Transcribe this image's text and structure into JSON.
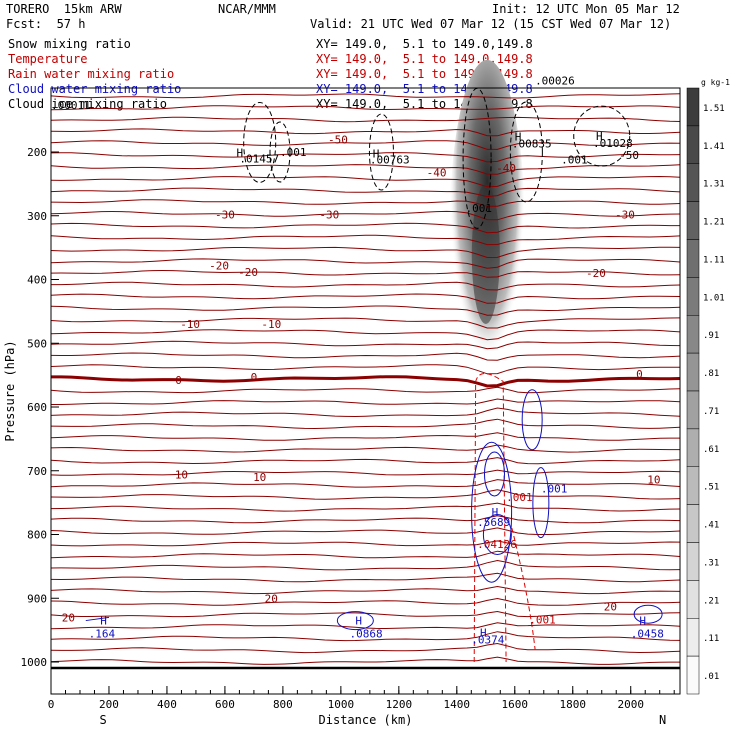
{
  "header": {
    "model": "TORERO  15km ARW",
    "center": "NCAR/MMM",
    "init": "Init: 12 UTC Mon 05 Mar 12",
    "fcst": "Fcst:  57 h",
    "valid": "Valid: 21 UTC Wed 07 Mar 12 (15 CST Wed 07 Mar 12)"
  },
  "fields": [
    {
      "label": "Snow mixing ratio",
      "xy": "XY= 149.0,  5.1 to 149.0,149.8",
      "color": "#000000"
    },
    {
      "label": "Temperature",
      "xy": "XY= 149.0,  5.1 to 149.0,149.8",
      "color": "#c00000"
    },
    {
      "label": "Rain water mixing ratio",
      "xy": "XY= 149.0,  5.1 to 149.0,149.8",
      "color": "#c00000"
    },
    {
      "label": "Cloud water mixing ratio",
      "xy": "XY= 149.0,  5.1 to 149.0,149.8",
      "color": "#1010c0"
    },
    {
      "label": "Cloud ice mixing ratio",
      "xy": "XY= 149.0,  5.1 to 149.0,149.8",
      "color": "#000000"
    }
  ],
  "chart_data": {
    "type": "contour",
    "xlabel": "Distance (km)",
    "ylabel": "Pressure (hPa)",
    "xlim": [
      0,
      2170
    ],
    "ylim": [
      1050,
      100
    ],
    "x_ticks": [
      0,
      200,
      400,
      600,
      800,
      1000,
      1200,
      1400,
      1600,
      1800,
      2000
    ],
    "y_ticks": [
      200,
      300,
      400,
      500,
      600,
      700,
      800,
      900,
      1000
    ],
    "x_end_labels": [
      "S",
      "N"
    ],
    "colorbar": {
      "unit": "g kg-1",
      "ticks": [
        "1.51",
        "1.41",
        "1.31",
        "1.21",
        "1.11",
        "1.01",
        ".91",
        ".81",
        ".71",
        ".61",
        ".51",
        ".41",
        ".31",
        ".21",
        ".11",
        ".01"
      ]
    },
    "temperature_contour_labels": [
      {
        "x": 990,
        "p": 180,
        "text": "-50"
      },
      {
        "x": 1330,
        "p": 232,
        "text": "-40"
      },
      {
        "x": 1570,
        "p": 225,
        "text": "-40"
      },
      {
        "x": 600,
        "p": 298,
        "text": "-30"
      },
      {
        "x": 960,
        "p": 298,
        "text": "-30"
      },
      {
        "x": 1980,
        "p": 298,
        "text": "-30"
      },
      {
        "x": 580,
        "p": 378,
        "text": "-20"
      },
      {
        "x": 680,
        "p": 388,
        "text": "-20"
      },
      {
        "x": 1880,
        "p": 390,
        "text": "-20"
      },
      {
        "x": 480,
        "p": 470,
        "text": "-10"
      },
      {
        "x": 760,
        "p": 470,
        "text": "-10"
      },
      {
        "x": 450,
        "p": 706,
        "text": "10"
      },
      {
        "x": 720,
        "p": 710,
        "text": "10"
      },
      {
        "x": 2080,
        "p": 714,
        "text": "10"
      },
      {
        "x": 760,
        "p": 900,
        "text": "20"
      },
      {
        "x": 1930,
        "p": 913,
        "text": "20"
      },
      {
        "x": 60,
        "p": 930,
        "text": "20"
      },
      {
        "x": 440,
        "p": 558,
        "text": "0"
      },
      {
        "x": 700,
        "p": 553,
        "text": "0"
      },
      {
        "x": 2030,
        "p": 548,
        "text": "0"
      }
    ],
    "maxima": [
      {
        "x": 0,
        "p": 126,
        "text": ".00011",
        "color": "#000000"
      },
      {
        "x": 650,
        "p": 210,
        "text": ".01457",
        "color": "#000000"
      },
      {
        "x": 790,
        "p": 200,
        "text": ".001",
        "color": "#000000"
      },
      {
        "x": 1100,
        "p": 212,
        "text": ".00763",
        "color": "#000000"
      },
      {
        "x": 1430,
        "p": 288,
        "text": ".001",
        "color": "#000000"
      },
      {
        "x": 1590,
        "p": 187,
        "text": ".00835",
        "color": "#000000"
      },
      {
        "x": 1870,
        "p": 186,
        "text": ".01028",
        "color": "#000000"
      },
      {
        "x": 1960,
        "p": 205,
        "text": "-50",
        "color": "#000000"
      },
      {
        "x": 1760,
        "p": 212,
        "text": ".001",
        "color": "#000000"
      },
      {
        "x": 1670,
        "p": 88,
        "text": ".00026",
        "color": "#000000"
      },
      {
        "x": 1690,
        "p": 728,
        "text": ".001",
        "color": "#1010c0"
      },
      {
        "x": 1470,
        "p": 780,
        "text": ".5689",
        "color": "#1010c0"
      },
      {
        "x": 1570,
        "p": 741,
        "text": ".001",
        "color": "#c00000"
      },
      {
        "x": 1470,
        "p": 815,
        "text": ".04126",
        "color": "#c00000"
      },
      {
        "x": 1650,
        "p": 933,
        "text": ".001",
        "color": "#c00000"
      },
      {
        "x": 130,
        "p": 955,
        "text": ".164",
        "color": "#1010c0"
      },
      {
        "x": 1030,
        "p": 955,
        "text": ".0868",
        "color": "#1010c0"
      },
      {
        "x": 1450,
        "p": 965,
        "text": ".0374",
        "color": "#1010c0"
      },
      {
        "x": 2000,
        "p": 955,
        "text": ".0458",
        "color": "#1010c0"
      }
    ],
    "high_markers": [
      {
        "x": 170,
        "p": 935,
        "color": "#1010c0"
      },
      {
        "x": 1050,
        "p": 935,
        "color": "#1010c0"
      },
      {
        "x": 1480,
        "p": 954,
        "color": "#1010c0"
      },
      {
        "x": 2030,
        "p": 935,
        "color": "#1010c0"
      },
      {
        "x": 1520,
        "p": 765,
        "color": "#1010c0"
      },
      {
        "x": 640,
        "p": 201,
        "color": "#000000"
      },
      {
        "x": 1110,
        "p": 202,
        "color": "#000000"
      },
      {
        "x": 1600,
        "p": 176,
        "color": "#000000"
      },
      {
        "x": 1880,
        "p": 175,
        "color": "#000000"
      }
    ]
  }
}
